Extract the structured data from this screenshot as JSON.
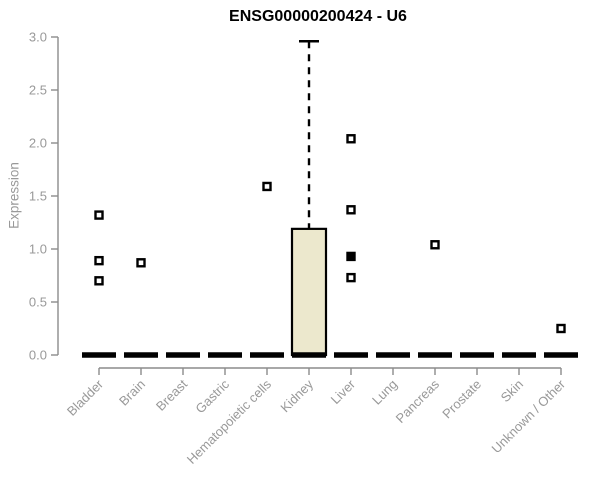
{
  "chart_data": {
    "type": "box",
    "title": "ENSG00000200424 - U6",
    "ylabel": "Expression",
    "xlabel": "",
    "ylim": [
      0.0,
      3.0
    ],
    "yticks": [
      "0.0",
      "0.5",
      "1.0",
      "1.5",
      "2.0",
      "2.5",
      "3.0"
    ],
    "grid": false,
    "legend": "none",
    "categories": [
      "Bladder",
      "Brain",
      "Breast",
      "Gastric",
      "Hematopoietic cells",
      "Kidney",
      "Liver",
      "Lung",
      "Pancreas",
      "Prostate",
      "Skin",
      "Unknown / Other"
    ],
    "boxes": [
      {
        "category": "Bladder",
        "median": 0,
        "q1": 0,
        "q3": 0,
        "whisker_low": 0,
        "whisker_high": 0,
        "outliers": [
          0.7,
          0.89,
          1.32
        ],
        "outliers_solid": []
      },
      {
        "category": "Brain",
        "median": 0,
        "q1": 0,
        "q3": 0,
        "whisker_low": 0,
        "whisker_high": 0,
        "outliers": [
          0.87
        ],
        "outliers_solid": []
      },
      {
        "category": "Breast",
        "median": 0,
        "q1": 0,
        "q3": 0,
        "whisker_low": 0,
        "whisker_high": 0,
        "outliers": [],
        "outliers_solid": []
      },
      {
        "category": "Gastric",
        "median": 0,
        "q1": 0,
        "q3": 0,
        "whisker_low": 0,
        "whisker_high": 0,
        "outliers": [],
        "outliers_solid": []
      },
      {
        "category": "Hematopoietic cells",
        "median": 0,
        "q1": 0,
        "q3": 0,
        "whisker_low": 0,
        "whisker_high": 0,
        "outliers": [
          1.59
        ],
        "outliers_solid": []
      },
      {
        "category": "Kidney",
        "median": 0,
        "q1": 0,
        "q3": 1.19,
        "whisker_low": 0,
        "whisker_high": 2.96,
        "outliers": [],
        "outliers_solid": []
      },
      {
        "category": "Liver",
        "median": 0,
        "q1": 0,
        "q3": 0,
        "whisker_low": 0,
        "whisker_high": 0,
        "outliers": [
          0.73,
          1.37,
          2.04
        ],
        "outliers_solid": [
          0.93
        ]
      },
      {
        "category": "Lung",
        "median": 0,
        "q1": 0,
        "q3": 0,
        "whisker_low": 0,
        "whisker_high": 0,
        "outliers": [],
        "outliers_solid": []
      },
      {
        "category": "Pancreas",
        "median": 0,
        "q1": 0,
        "q3": 0,
        "whisker_low": 0,
        "whisker_high": 0,
        "outliers": [
          1.04
        ],
        "outliers_solid": []
      },
      {
        "category": "Prostate",
        "median": 0,
        "q1": 0,
        "q3": 0,
        "whisker_low": 0,
        "whisker_high": 0,
        "outliers": [],
        "outliers_solid": []
      },
      {
        "category": "Skin",
        "median": 0,
        "q1": 0,
        "q3": 0,
        "whisker_low": 0,
        "whisker_high": 0,
        "outliers": [],
        "outliers_solid": []
      },
      {
        "category": "Unknown / Other",
        "median": 0,
        "q1": 0,
        "q3": 0,
        "whisker_low": 0,
        "whisker_high": 0,
        "outliers": [
          0.25
        ],
        "outliers_solid": []
      }
    ],
    "colors": {
      "box_fill": "#ece8cd",
      "box_border": "#000000",
      "median": "#000000",
      "outlier_stroke": "#000000",
      "axis_line": "#8c8c8c",
      "tick_label": "#999999",
      "title": "#000000"
    }
  }
}
